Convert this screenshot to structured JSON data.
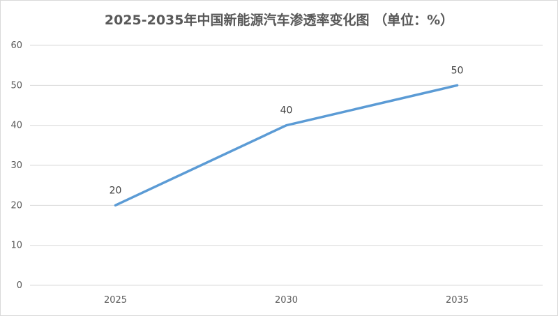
{
  "chart_data": {
    "type": "line",
    "title": "2025-2035年中国新能源汽车渗透率变化图 （单位：%）",
    "xlabel": "",
    "ylabel": "",
    "categories": [
      "2025",
      "2030",
      "2035"
    ],
    "series": [
      {
        "values": [
          20,
          40,
          50
        ],
        "color": "#5b9bd5"
      }
    ],
    "ylim": [
      0,
      60
    ],
    "yticks": [
      0,
      10,
      20,
      30,
      40,
      50,
      60
    ],
    "grid": true,
    "legend": "none",
    "data_labels": true
  }
}
